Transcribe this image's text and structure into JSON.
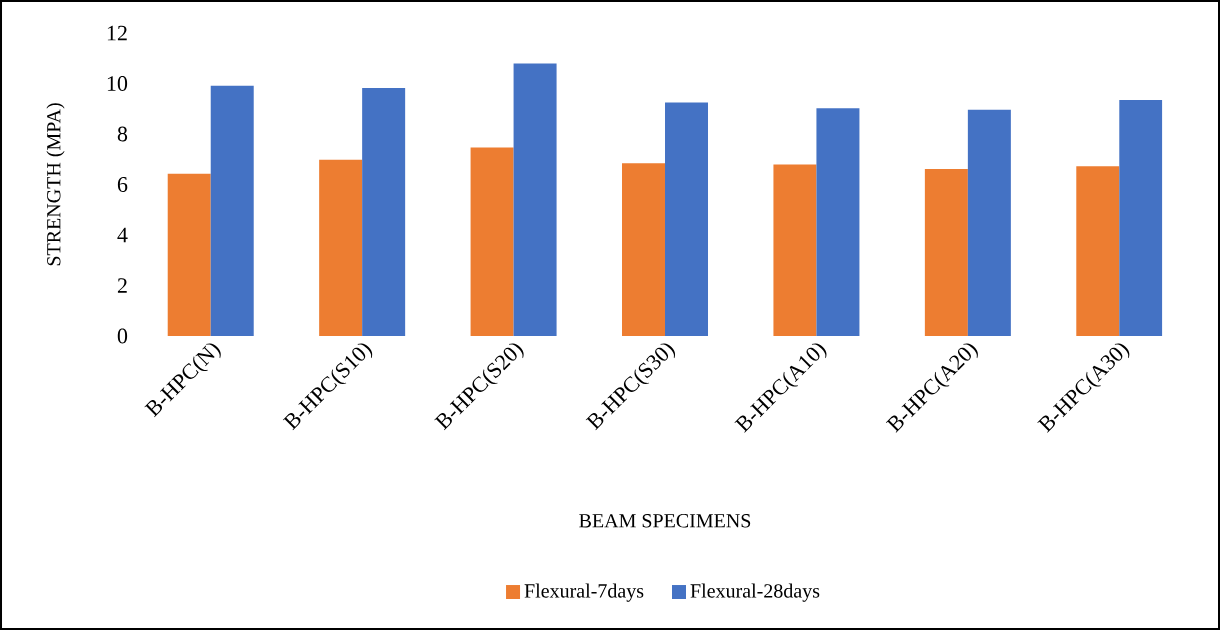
{
  "chart_data": {
    "type": "bar",
    "xlabel": "BEAM SPECIMENS",
    "ylabel": "STRENGTH (MPA)",
    "categories": [
      "B-HPC(N)",
      "B-HPC(S10)",
      "B-HPC(S20)",
      "B-HPC(S30)",
      "B-HPC(A10)",
      "B-HPC(A20)",
      "B-HPC(A30)"
    ],
    "series": [
      {
        "name": "Flexural-7days",
        "color": "#ed7d31",
        "values": [
          6.43,
          6.98,
          7.47,
          6.84,
          6.79,
          6.61,
          6.72
        ]
      },
      {
        "name": "Flexural-28days",
        "color": "#4472c4",
        "values": [
          9.91,
          9.82,
          10.79,
          9.25,
          9.02,
          8.96,
          9.35
        ]
      }
    ],
    "ylim": [
      0,
      12
    ],
    "yticks": [
      0,
      2,
      4,
      6,
      8,
      10,
      12
    ],
    "legend": "bottom"
  }
}
